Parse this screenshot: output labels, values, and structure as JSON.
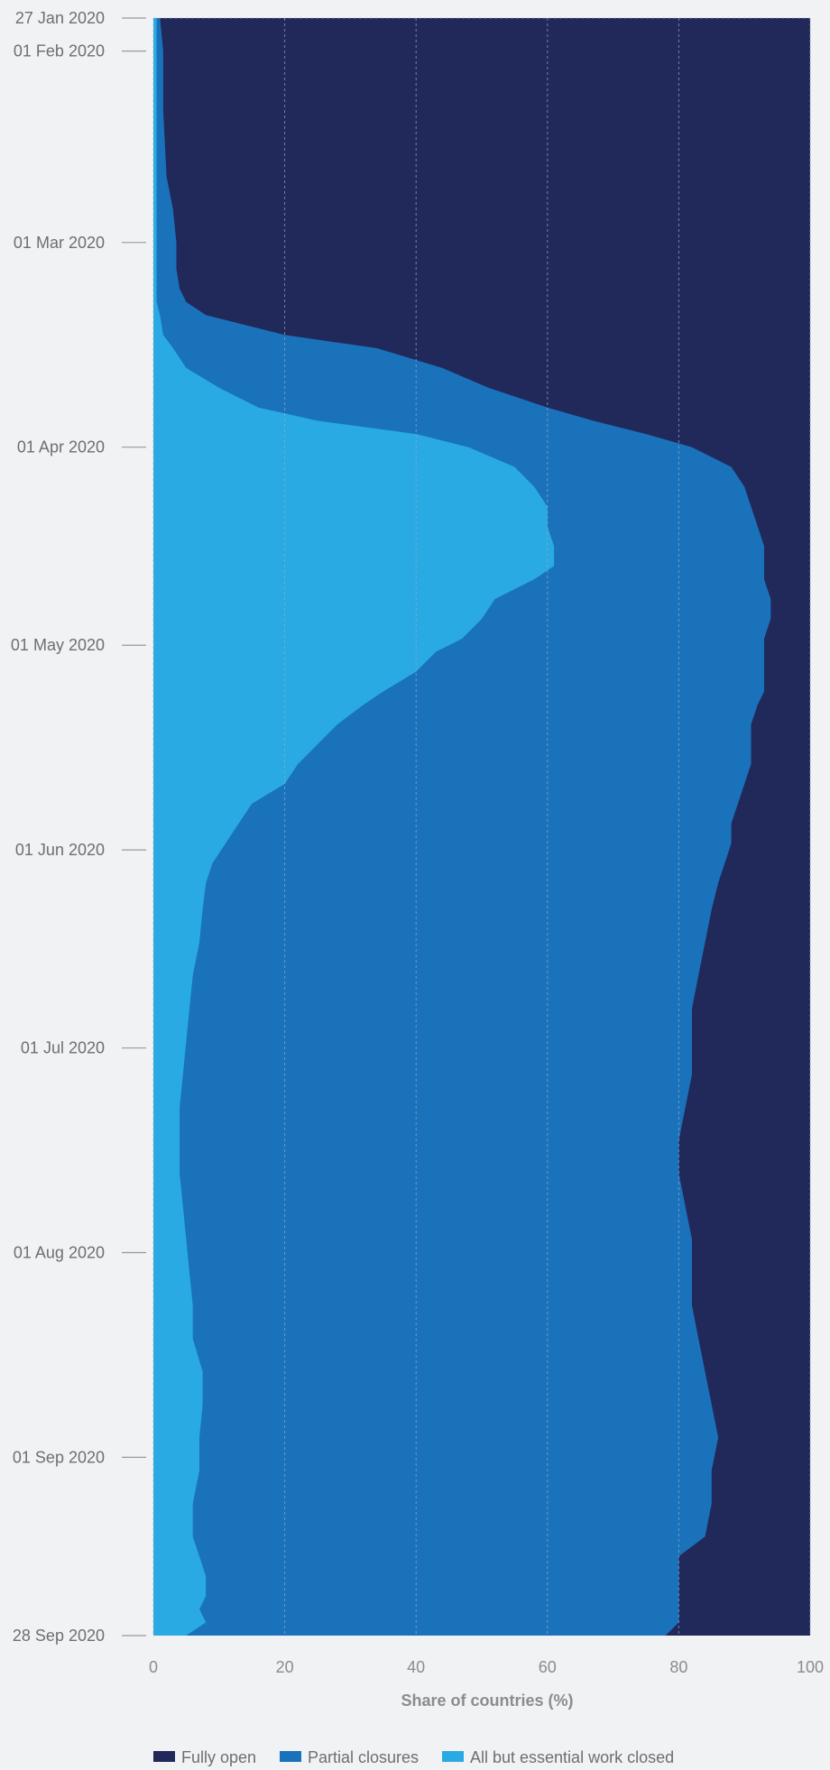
{
  "chart_data": {
    "type": "area",
    "orientation": "horizontal-stacked-100",
    "xlabel": "Share of countries (%)",
    "ylabel": "",
    "xlim": [
      0,
      100
    ],
    "x_ticks": [
      0,
      20,
      40,
      60,
      80,
      100
    ],
    "x_tick_labels": [
      "0",
      "20",
      "40",
      "60",
      "80",
      "100"
    ],
    "date_range": [
      "2020-01-27",
      "2020-09-28"
    ],
    "date_ticks": [
      {
        "date": "2020-01-27",
        "label": "27 Jan 2020"
      },
      {
        "date": "2020-02-01",
        "label": "01 Feb 2020"
      },
      {
        "date": "2020-03-01",
        "label": "01 Mar 2020"
      },
      {
        "date": "2020-04-01",
        "label": "01 Apr 2020"
      },
      {
        "date": "2020-05-01",
        "label": "01 May 2020"
      },
      {
        "date": "2020-06-01",
        "label": "01 Jun 2020"
      },
      {
        "date": "2020-07-01",
        "label": "01 Jul 2020"
      },
      {
        "date": "2020-08-01",
        "label": "01 Aug 2020"
      },
      {
        "date": "2020-09-01",
        "label": "01 Sep 2020"
      },
      {
        "date": "2020-09-28",
        "label": "28 Sep 2020"
      }
    ],
    "grid": true,
    "legend_position": "bottom",
    "series": [
      {
        "name": "Fully open",
        "color": "#21285a"
      },
      {
        "name": "Partial closures",
        "color": "#1a72bb"
      },
      {
        "name": "All but essential work closed",
        "color": "#29aae2"
      }
    ],
    "data": {
      "dates": [
        "2020-01-27",
        "2020-02-01",
        "2020-02-10",
        "2020-02-20",
        "2020-02-25",
        "2020-03-01",
        "2020-03-05",
        "2020-03-08",
        "2020-03-10",
        "2020-03-12",
        "2020-03-15",
        "2020-03-17",
        "2020-03-20",
        "2020-03-23",
        "2020-03-26",
        "2020-03-28",
        "2020-03-30",
        "2020-04-01",
        "2020-04-04",
        "2020-04-07",
        "2020-04-10",
        "2020-04-13",
        "2020-04-16",
        "2020-04-19",
        "2020-04-21",
        "2020-04-24",
        "2020-04-27",
        "2020-04-30",
        "2020-05-02",
        "2020-05-05",
        "2020-05-08",
        "2020-05-10",
        "2020-05-13",
        "2020-05-16",
        "2020-05-19",
        "2020-05-22",
        "2020-05-25",
        "2020-05-28",
        "2020-05-31",
        "2020-06-03",
        "2020-06-06",
        "2020-06-10",
        "2020-06-15",
        "2020-06-20",
        "2020-06-25",
        "2020-06-30",
        "2020-07-05",
        "2020-07-10",
        "2020-07-15",
        "2020-07-20",
        "2020-07-25",
        "2020-07-30",
        "2020-08-04",
        "2020-08-09",
        "2020-08-14",
        "2020-08-19",
        "2020-08-24",
        "2020-08-29",
        "2020-09-03",
        "2020-09-08",
        "2020-09-13",
        "2020-09-16",
        "2020-09-19",
        "2020-09-22",
        "2020-09-24",
        "2020-09-26",
        "2020-09-28"
      ],
      "all_but_essential_closed": [
        0.5,
        0.5,
        0.5,
        0.5,
        0.5,
        0.5,
        0.5,
        0.5,
        0.5,
        1,
        1.5,
        3,
        5,
        10,
        16,
        25,
        40,
        48,
        55,
        58,
        60,
        60,
        61,
        61,
        58,
        52,
        50,
        47,
        43,
        40,
        35,
        32,
        28,
        25,
        22,
        20,
        15,
        13,
        11,
        9,
        8,
        7.5,
        7,
        6,
        5.5,
        5,
        4.5,
        4,
        4,
        4,
        4.5,
        5,
        5.5,
        6,
        6,
        7.5,
        7.5,
        7,
        7,
        6,
        6,
        7,
        8,
        8,
        7,
        8,
        5
      ],
      "partial_or_more": [
        1,
        1.5,
        1.5,
        2,
        3,
        3.5,
        3.5,
        4,
        5,
        8,
        20,
        34,
        44,
        51,
        60,
        67,
        75,
        82,
        88,
        90,
        91,
        92,
        93,
        93,
        93,
        94,
        94,
        93,
        93,
        93,
        93,
        92,
        91,
        91,
        91,
        90,
        89,
        88,
        88,
        87,
        86,
        85,
        84,
        83,
        82,
        82,
        82,
        81,
        80,
        80,
        81,
        82,
        82,
        82,
        83,
        84,
        85,
        86,
        85,
        85,
        84,
        80,
        80,
        80,
        80,
        80,
        78
      ]
    }
  },
  "legend": {
    "items": [
      {
        "label": "Fully open",
        "color": "#21285a"
      },
      {
        "label": "Partial closures",
        "color": "#1a72bb"
      },
      {
        "label": "All but essential work closed",
        "color": "#29aae2"
      }
    ]
  }
}
